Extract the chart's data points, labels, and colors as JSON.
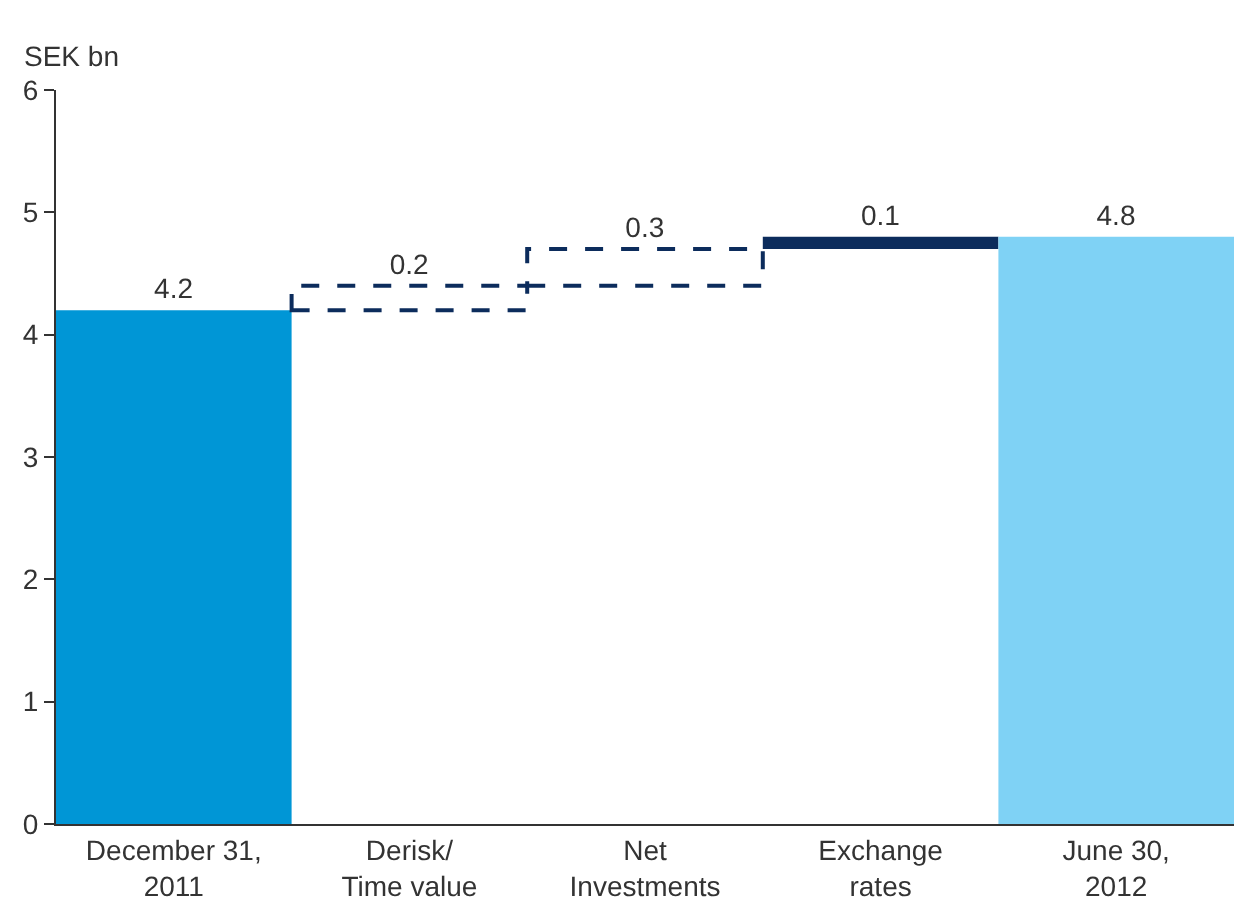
{
  "chart_data": {
    "type": "bar",
    "ylabel": "SEK bn",
    "categories": [
      "December 31,\n2011",
      "Derisk/\nTime value",
      "Net\nInvestments",
      "Exchange\nrates",
      "June 30,\n2012"
    ],
    "series": [
      {
        "values": [
          4.2,
          null,
          null,
          0.1,
          4.8
        ],
        "base": [
          0,
          null,
          null,
          4.7,
          0
        ],
        "colors": [
          "#0096d6",
          null,
          null,
          "#0c2c5c",
          "#7fd2f5"
        ]
      },
      {
        "values": [
          null,
          0.2,
          0.3,
          null,
          null
        ],
        "base": [
          null,
          4.2,
          4.4,
          null,
          null
        ],
        "color": "#0c2c5c",
        "line_style": "dashed"
      }
    ],
    "ylim": [
      0,
      6
    ],
    "yticks": [
      0,
      1,
      2,
      3,
      4,
      5,
      6
    ],
    "legend": false,
    "data_labels": true
  }
}
